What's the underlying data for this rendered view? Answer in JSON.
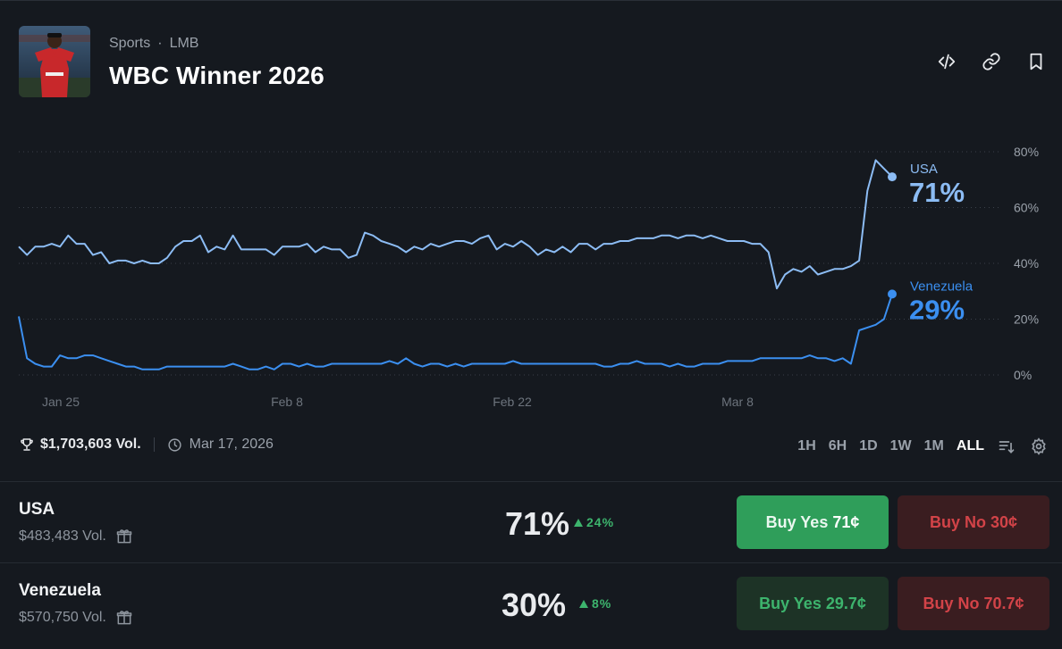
{
  "header": {
    "category": "Sports",
    "subcategory": "LMB",
    "title": "WBC Winner 2026"
  },
  "colors": {
    "usa_line": "#8cbcf4",
    "venezuela_line": "#3b8ff0",
    "yes": "#2f9e5a",
    "no": "#d24348",
    "background": "#15191f"
  },
  "chart_data": {
    "type": "line",
    "x_tick_labels": [
      "Jan 25",
      "Feb 8",
      "Feb 22",
      "Mar 8"
    ],
    "y_tick_labels": [
      "80%",
      "60%",
      "40%",
      "20%",
      "0%"
    ],
    "ylim": [
      0,
      80
    ],
    "grid": true,
    "series": [
      {
        "name": "USA",
        "end_label": "71%",
        "values": [
          46,
          43,
          46,
          46,
          47,
          46,
          50,
          47,
          47,
          43,
          44,
          40,
          41,
          41,
          40,
          41,
          40,
          40,
          42,
          46,
          48,
          48,
          50,
          44,
          46,
          45,
          50,
          45,
          45,
          45,
          45,
          43,
          46,
          46,
          46,
          47,
          44,
          46,
          45,
          45,
          42,
          43,
          51,
          50,
          48,
          47,
          46,
          44,
          46,
          45,
          47,
          46,
          47,
          48,
          48,
          47,
          49,
          50,
          45,
          47,
          46,
          48,
          46,
          43,
          45,
          44,
          46,
          44,
          47,
          47,
          45,
          47,
          47,
          48,
          48,
          49,
          49,
          49,
          50,
          50,
          49,
          50,
          50,
          49,
          50,
          49,
          48,
          48,
          48,
          47,
          47,
          44,
          31,
          36,
          38,
          37,
          39,
          36,
          37,
          38,
          38,
          39,
          41,
          66,
          77,
          74,
          71
        ]
      },
      {
        "name": "Venezuela",
        "end_label": "29%",
        "values": [
          21,
          6,
          4,
          3,
          3,
          7,
          6,
          6,
          7,
          7,
          6,
          5,
          4,
          3,
          3,
          2,
          2,
          2,
          3,
          3,
          3,
          3,
          3,
          3,
          3,
          3,
          4,
          3,
          2,
          2,
          3,
          2,
          4,
          4,
          3,
          4,
          3,
          3,
          4,
          4,
          4,
          4,
          4,
          4,
          4,
          5,
          4,
          6,
          4,
          3,
          4,
          4,
          3,
          4,
          3,
          4,
          4,
          4,
          4,
          4,
          5,
          4,
          4,
          4,
          4,
          4,
          4,
          4,
          4,
          4,
          4,
          3,
          3,
          4,
          4,
          5,
          4,
          4,
          4,
          3,
          4,
          3,
          3,
          4,
          4,
          4,
          5,
          5,
          5,
          5,
          6,
          6,
          6,
          6,
          6,
          6,
          7,
          6,
          6,
          5,
          6,
          4,
          16,
          17,
          18,
          20,
          29
        ]
      }
    ]
  },
  "meta": {
    "volume": "$1,703,603 Vol.",
    "date": "Mar 17, 2026"
  },
  "ranges": [
    "1H",
    "6H",
    "1D",
    "1W",
    "1M",
    "ALL"
  ],
  "active_range": "ALL",
  "outcomes": [
    {
      "name": "USA",
      "volume": "$483,483 Vol.",
      "percent": "71%",
      "change": "24%",
      "buy_yes_label": "Buy Yes",
      "buy_yes_price": "71¢",
      "buy_no_label": "Buy No",
      "buy_no_price": "30¢"
    },
    {
      "name": "Venezuela",
      "volume": "$570,750 Vol.",
      "percent": "30%",
      "change": "8%",
      "buy_yes_label": "Buy Yes",
      "buy_yes_price": "29.7¢",
      "buy_no_label": "Buy No",
      "buy_no_price": "70.7¢"
    }
  ]
}
